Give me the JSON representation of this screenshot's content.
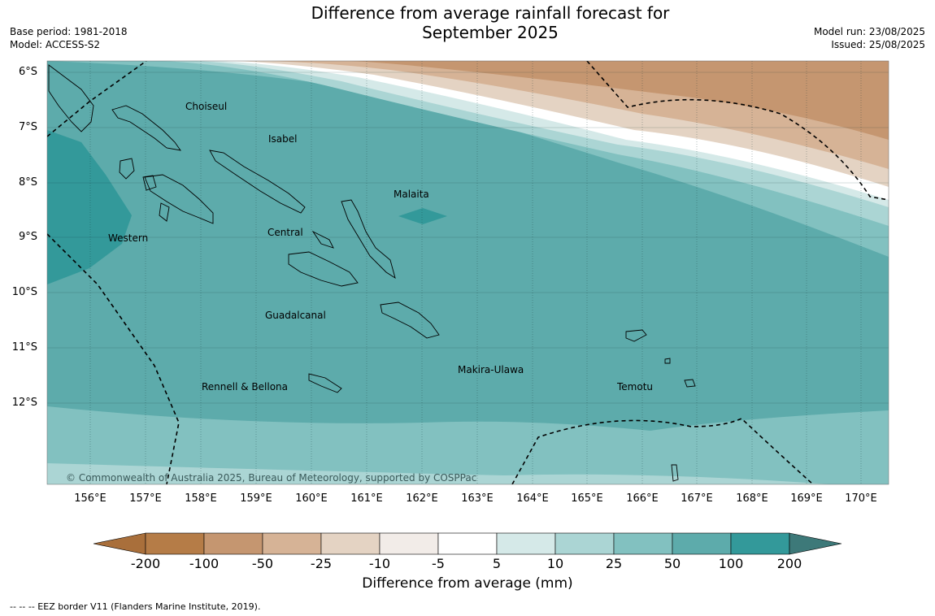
{
  "title_line1": "Difference from average rainfall forecast for",
  "title_line2": "September 2025",
  "base_period": "Base period: 1981-2018",
  "model": "Model: ACCESS-S2",
  "model_run": "Model run: 23/08/2025",
  "issued": "Issued: 25/08/2025",
  "lat_labels": [
    "6°S",
    "7°S",
    "8°S",
    "9°S",
    "10°S",
    "11°S",
    "12°S"
  ],
  "lon_labels": [
    "156°E",
    "157°E",
    "158°E",
    "159°E",
    "160°E",
    "161°E",
    "162°E",
    "163°E",
    "164°E",
    "165°E",
    "166°E",
    "167°E",
    "168°E",
    "169°E",
    "170°E"
  ],
  "places": {
    "choiseul": "Choiseul",
    "isabel": "Isabel",
    "malaita": "Malaita",
    "western": "Western",
    "central": "Central",
    "guadalcanal": "Guadalcanal",
    "makira": "Makira-Ulawa",
    "rennell": "Rennell & Bellona",
    "temotu": "Temotu"
  },
  "copyright": "© Commonwealth of Australia 2025, Bureau of Meteorology, supported by COSPPac",
  "colorbar": {
    "ticks": [
      "-200",
      "-100",
      "-50",
      "-25",
      "-10",
      "-5",
      "5",
      "10",
      "25",
      "50",
      "100",
      "200"
    ],
    "colors": [
      "#a96f3b",
      "#b57c47",
      "#c59670",
      "#d6b396",
      "#e4d3c3",
      "#f2ece8",
      "#ffffff",
      "#d5e9e8",
      "#abd5d4",
      "#82c1c0",
      "#5dabab",
      "#33999a",
      "#3d7979"
    ],
    "label": "Difference from average (mm)"
  },
  "legend_note": "--  --  -- EEZ border V11 (Flanders Marine Institute, 2019)."
}
